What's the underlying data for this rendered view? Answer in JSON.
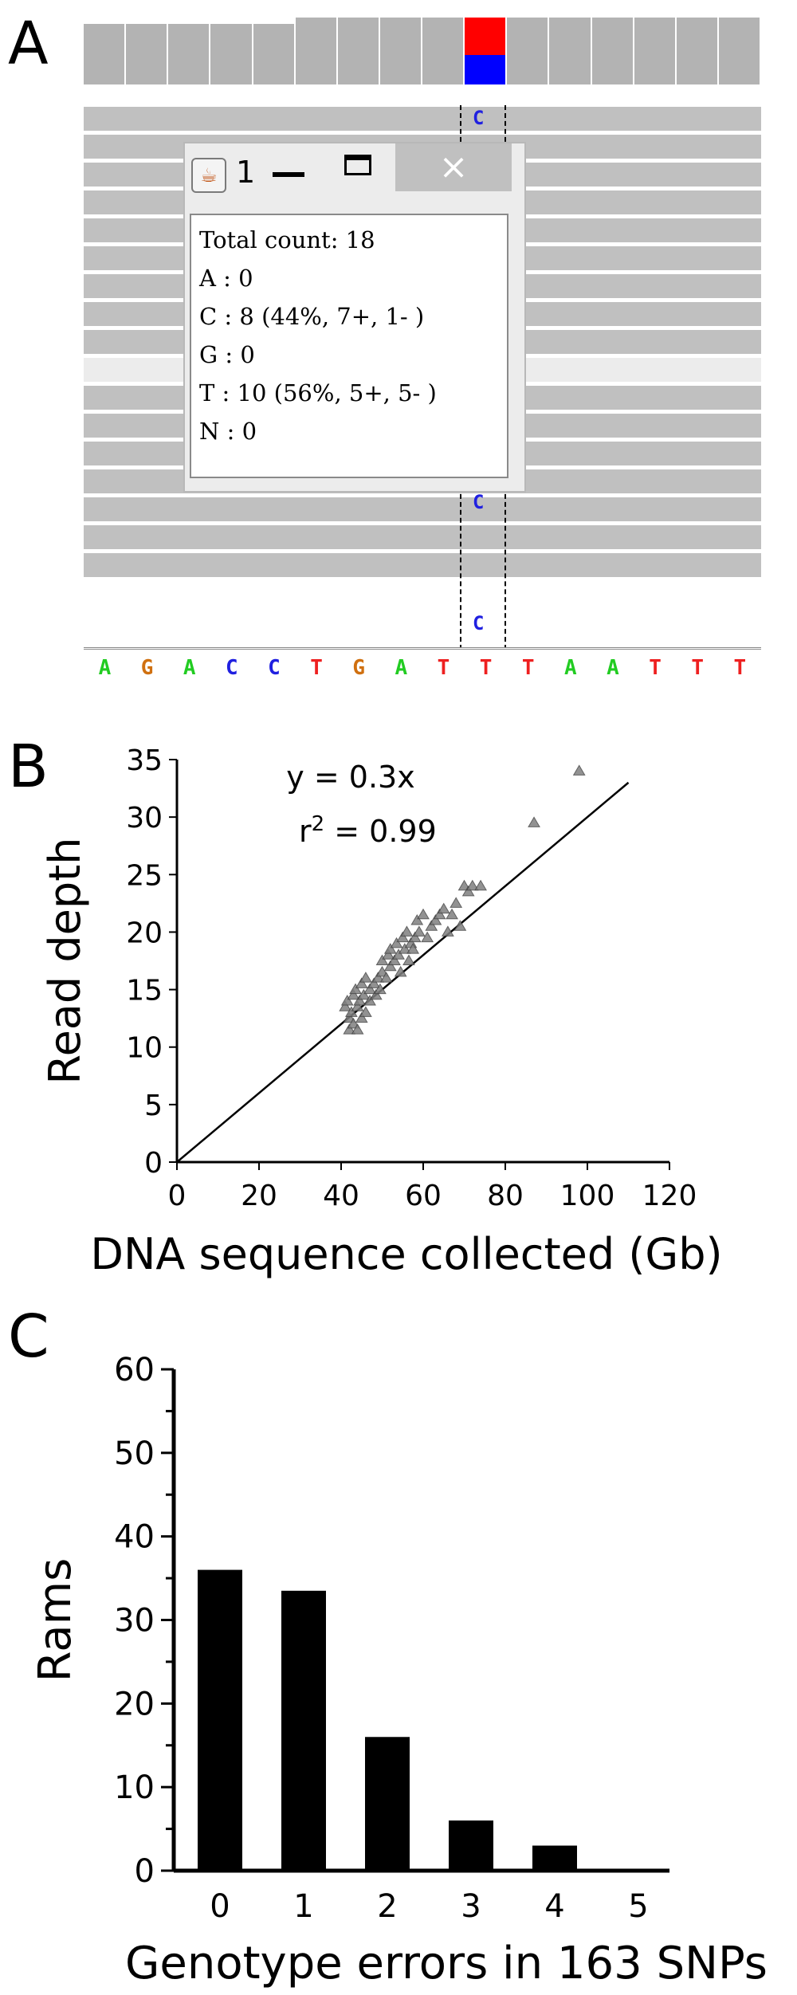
{
  "panel_labels": {
    "a": "A",
    "b": "B",
    "c": "C"
  },
  "panelA": {
    "reference_sequence": [
      {
        "base": "A",
        "color": "#22cc22"
      },
      {
        "base": "G",
        "color": "#d07010"
      },
      {
        "base": "A",
        "color": "#22cc22"
      },
      {
        "base": "C",
        "color": "#2020e0"
      },
      {
        "base": "C",
        "color": "#2020e0"
      },
      {
        "base": "T",
        "color": "#ee2020"
      },
      {
        "base": "G",
        "color": "#d07010"
      },
      {
        "base": "A",
        "color": "#22cc22"
      },
      {
        "base": "T",
        "color": "#ee2020"
      },
      {
        "base": "T",
        "color": "#ee2020"
      },
      {
        "base": "T",
        "color": "#ee2020"
      },
      {
        "base": "A",
        "color": "#22cc22"
      },
      {
        "base": "A",
        "color": "#22cc22"
      },
      {
        "base": "T",
        "color": "#ee2020"
      },
      {
        "base": "T",
        "color": "#ee2020"
      },
      {
        "base": "T",
        "color": "#ee2020"
      }
    ],
    "variant_base": "C",
    "variant_coverage": {
      "red_fraction": 0.56,
      "red_color": "#ff0000",
      "blue_color": "#0000ff"
    },
    "popup": {
      "title": "1",
      "close_symbol": "×",
      "java_icon": "java-coffee-icon",
      "lines": [
        "Total count: 18",
        "A : 0",
        "C : 8 (44%, 7+, 1- )",
        "G : 0",
        "T : 10 (56%, 5+, 5- )",
        "N : 0"
      ]
    }
  },
  "chart_data": [
    {
      "type": "scatter",
      "panel": "B",
      "xlabel": "DNA sequence collected (Gb)",
      "ylabel": "Read depth",
      "xlim": [
        0,
        120
      ],
      "ylim": [
        0,
        35
      ],
      "xticks": [
        0,
        20,
        40,
        60,
        80,
        100,
        120
      ],
      "yticks": [
        0,
        5,
        10,
        15,
        20,
        25,
        30,
        35
      ],
      "annotations": [
        "y = 0.3x",
        "r",
        "2",
        " = 0.99"
      ],
      "trendline": {
        "slope": 0.3,
        "intercept": 0
      },
      "marker_color": "#808080",
      "points": [
        [
          41,
          13.5
        ],
        [
          41.5,
          14
        ],
        [
          42,
          12.5
        ],
        [
          42,
          11.5
        ],
        [
          42.5,
          13
        ],
        [
          43,
          14.5
        ],
        [
          43,
          12
        ],
        [
          43.5,
          15
        ],
        [
          44,
          13.5
        ],
        [
          44,
          11.5
        ],
        [
          44.5,
          14
        ],
        [
          45,
          15.5
        ],
        [
          45,
          12.5
        ],
        [
          45.5,
          14.5
        ],
        [
          46,
          16
        ],
        [
          46,
          13
        ],
        [
          47,
          14
        ],
        [
          47,
          15
        ],
        [
          48,
          15.5
        ],
        [
          48.5,
          14.5
        ],
        [
          49,
          16
        ],
        [
          49.5,
          15
        ],
        [
          50,
          16.5
        ],
        [
          50,
          17.5
        ],
        [
          51,
          16
        ],
        [
          51.5,
          18
        ],
        [
          52,
          17
        ],
        [
          52,
          18.5
        ],
        [
          53,
          17.5
        ],
        [
          53.5,
          19
        ],
        [
          54,
          18
        ],
        [
          54.5,
          16.5
        ],
        [
          55,
          19.5
        ],
        [
          55.5,
          18.5
        ],
        [
          56,
          20
        ],
        [
          56.5,
          17.5
        ],
        [
          57,
          19
        ],
        [
          57.5,
          18.5
        ],
        [
          58,
          19.5
        ],
        [
          58.5,
          21
        ],
        [
          59,
          20
        ],
        [
          60,
          21.5
        ],
        [
          61,
          19.5
        ],
        [
          62,
          20.5
        ],
        [
          63,
          21
        ],
        [
          64,
          21.5
        ],
        [
          65,
          22
        ],
        [
          66,
          20
        ],
        [
          67,
          21.5
        ],
        [
          68,
          22.5
        ],
        [
          69,
          20.5
        ],
        [
          70,
          24
        ],
        [
          71,
          23.5
        ],
        [
          72,
          24
        ],
        [
          74,
          24
        ],
        [
          87,
          29.5
        ],
        [
          98,
          34
        ]
      ]
    },
    {
      "type": "bar",
      "panel": "C",
      "xlabel": "Genotype errors in 163 SNPs",
      "ylabel": "Rams",
      "categories": [
        "0",
        "1",
        "2",
        "3",
        "4",
        "5"
      ],
      "values": [
        36,
        33.5,
        16,
        6,
        3,
        0
      ],
      "ylim": [
        0,
        60
      ],
      "yticks": [
        0,
        10,
        20,
        30,
        40,
        50,
        60
      ],
      "bar_color": "#000000"
    }
  ]
}
